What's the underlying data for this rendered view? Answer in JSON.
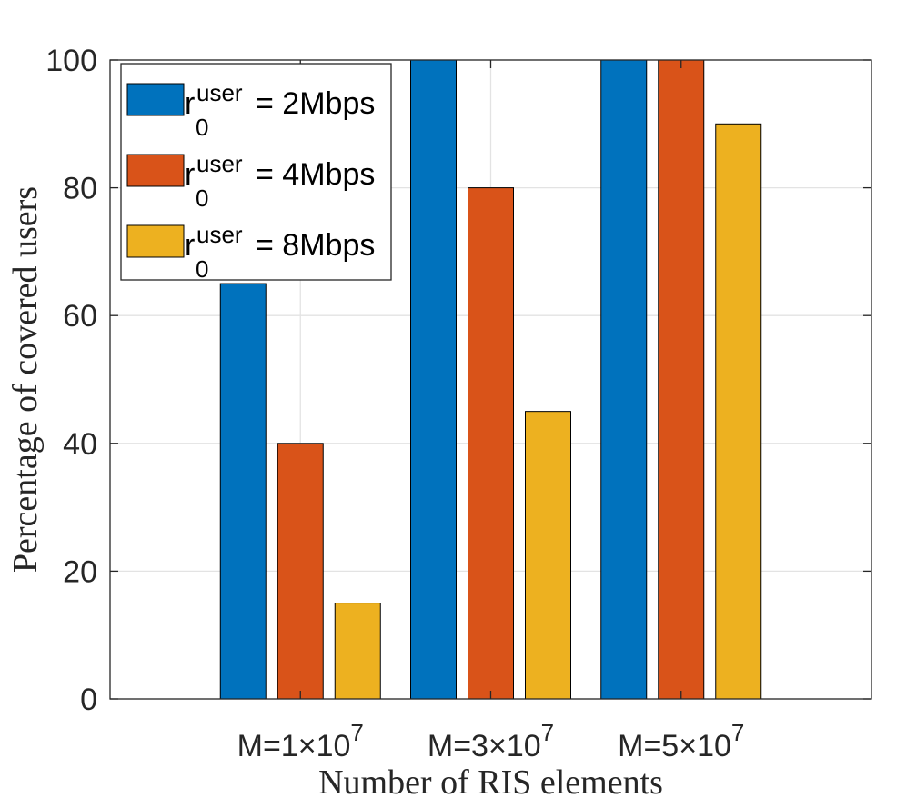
{
  "chart_data": {
    "type": "bar",
    "title": "",
    "xlabel": "Number of RIS elements",
    "ylabel": "Percentage of covered users",
    "ylim": [
      0,
      100
    ],
    "yticks": [
      0,
      20,
      40,
      60,
      80,
      100
    ],
    "grid": true,
    "legend_position": "top-left",
    "categories": [
      {
        "base": "M=1×10",
        "exp": "7"
      },
      {
        "base": "M=3×10",
        "exp": "7"
      },
      {
        "base": "M=5×10",
        "exp": "7"
      }
    ],
    "series": [
      {
        "name": "r0user = 2Mbps",
        "legend": {
          "var": "r",
          "sub": "0",
          "sup": "user",
          "rest": "= 2Mbps"
        },
        "color": "#0072BD",
        "values": [
          65,
          100,
          100
        ]
      },
      {
        "name": "r0user = 4Mbps",
        "legend": {
          "var": "r",
          "sub": "0",
          "sup": "user",
          "rest": "= 4Mbps"
        },
        "color": "#D95319",
        "values": [
          40,
          80,
          100
        ]
      },
      {
        "name": "r0user = 8Mbps",
        "legend": {
          "var": "r",
          "sub": "0",
          "sup": "user",
          "rest": "= 8Mbps"
        },
        "color": "#EDB120",
        "values": [
          15,
          45,
          90
        ]
      }
    ]
  }
}
